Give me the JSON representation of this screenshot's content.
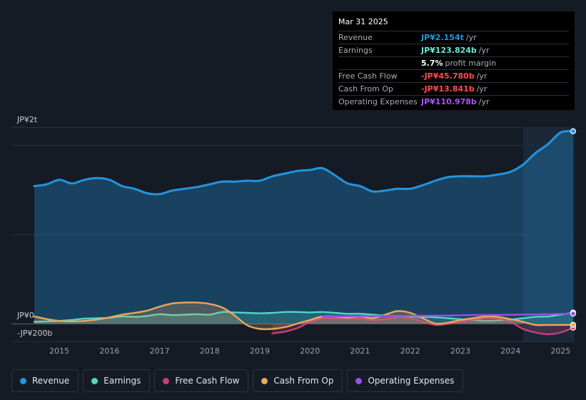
{
  "tooltip": {
    "date": "Mar 31 2025",
    "rows": [
      {
        "label": "Revenue",
        "value": "JP¥2.154t",
        "unit": "/yr",
        "color": "#2394df"
      },
      {
        "label": "Earnings",
        "value": "JP¥123.824b",
        "unit": "/yr",
        "color": "#6ee7d7"
      },
      {
        "label": "",
        "value": "5.7%",
        "unit": "profit margin",
        "color": "#ffffff"
      },
      {
        "label": "Free Cash Flow",
        "value": "-JP¥45.780b",
        "unit": "/yr",
        "color": "#ff4d4d"
      },
      {
        "label": "Cash From Op",
        "value": "-JP¥13.841b",
        "unit": "/yr",
        "color": "#ff4d4d"
      },
      {
        "label": "Operating Expenses",
        "value": "JP¥110.978b",
        "unit": "/yr",
        "color": "#a855f7"
      }
    ]
  },
  "legend": [
    {
      "label": "Revenue",
      "color": "#2394df"
    },
    {
      "label": "Earnings",
      "color": "#4fd6c6"
    },
    {
      "label": "Free Cash Flow",
      "color": "#c2407a"
    },
    {
      "label": "Cash From Op",
      "color": "#e9a85c"
    },
    {
      "label": "Operating Expenses",
      "color": "#9b4ee6"
    }
  ],
  "chart_data": {
    "type": "area",
    "title": "",
    "xlabel": "",
    "ylabel": "",
    "y_tick_labels": [
      "JP¥2t",
      "JP¥0",
      "-JP¥200b"
    ],
    "ylim": [
      -200,
      2200
    ],
    "xlim": [
      2014.5,
      2025.25
    ],
    "x_ticks": [
      2015,
      2016,
      2017,
      2018,
      2019,
      2020,
      2021,
      2022,
      2023,
      2024,
      2025
    ],
    "x_tick_labels": [
      "2015",
      "2016",
      "2017",
      "2018",
      "2019",
      "2020",
      "2021",
      "2022",
      "2023",
      "2024",
      "2025"
    ],
    "highlight_from": 2024.25,
    "series": [
      {
        "name": "Revenue",
        "unit": "JP¥ billions",
        "color": "#2394df",
        "fill": true,
        "points": [
          [
            2014.5,
            1540
          ],
          [
            2014.75,
            1560
          ],
          [
            2015.0,
            1610
          ],
          [
            2015.25,
            1570
          ],
          [
            2015.5,
            1610
          ],
          [
            2015.75,
            1630
          ],
          [
            2016.0,
            1610
          ],
          [
            2016.25,
            1540
          ],
          [
            2016.5,
            1510
          ],
          [
            2016.75,
            1460
          ],
          [
            2017.0,
            1450
          ],
          [
            2017.25,
            1490
          ],
          [
            2017.5,
            1510
          ],
          [
            2017.75,
            1530
          ],
          [
            2018.0,
            1560
          ],
          [
            2018.25,
            1590
          ],
          [
            2018.5,
            1590
          ],
          [
            2018.75,
            1600
          ],
          [
            2019.0,
            1600
          ],
          [
            2019.25,
            1650
          ],
          [
            2019.5,
            1680
          ],
          [
            2019.75,
            1710
          ],
          [
            2020.0,
            1720
          ],
          [
            2020.25,
            1740
          ],
          [
            2020.5,
            1660
          ],
          [
            2020.75,
            1570
          ],
          [
            2021.0,
            1540
          ],
          [
            2021.25,
            1480
          ],
          [
            2021.5,
            1490
          ],
          [
            2021.75,
            1510
          ],
          [
            2022.0,
            1510
          ],
          [
            2022.25,
            1550
          ],
          [
            2022.5,
            1600
          ],
          [
            2022.75,
            1640
          ],
          [
            2023.0,
            1650
          ],
          [
            2023.25,
            1650
          ],
          [
            2023.5,
            1650
          ],
          [
            2023.75,
            1670
          ],
          [
            2024.0,
            1700
          ],
          [
            2024.25,
            1780
          ],
          [
            2024.5,
            1910
          ],
          [
            2024.75,
            2010
          ],
          [
            2025.0,
            2140
          ],
          [
            2025.25,
            2154
          ]
        ]
      },
      {
        "name": "Earnings",
        "unit": "JP¥ billions",
        "color": "#4fd6c6",
        "fill": true,
        "points": [
          [
            2014.5,
            20
          ],
          [
            2014.75,
            25
          ],
          [
            2015.0,
            30
          ],
          [
            2015.25,
            40
          ],
          [
            2015.5,
            55
          ],
          [
            2015.75,
            60
          ],
          [
            2016.0,
            65
          ],
          [
            2016.25,
            80
          ],
          [
            2016.5,
            75
          ],
          [
            2016.75,
            85
          ],
          [
            2017.0,
            105
          ],
          [
            2017.25,
            95
          ],
          [
            2017.5,
            100
          ],
          [
            2017.75,
            105
          ],
          [
            2018.0,
            100
          ],
          [
            2018.25,
            130
          ],
          [
            2018.5,
            125
          ],
          [
            2018.75,
            120
          ],
          [
            2019.0,
            115
          ],
          [
            2019.25,
            120
          ],
          [
            2019.5,
            130
          ],
          [
            2019.75,
            130
          ],
          [
            2020.0,
            125
          ],
          [
            2020.25,
            130
          ],
          [
            2020.5,
            120
          ],
          [
            2020.75,
            110
          ],
          [
            2021.0,
            110
          ],
          [
            2021.25,
            100
          ],
          [
            2021.5,
            90
          ],
          [
            2021.75,
            85
          ],
          [
            2022.0,
            80
          ],
          [
            2022.25,
            75
          ],
          [
            2022.5,
            70
          ],
          [
            2022.75,
            60
          ],
          [
            2023.0,
            50
          ],
          [
            2023.25,
            40
          ],
          [
            2023.5,
            30
          ],
          [
            2023.75,
            35
          ],
          [
            2024.0,
            45
          ],
          [
            2024.25,
            60
          ],
          [
            2024.5,
            75
          ],
          [
            2024.75,
            80
          ],
          [
            2025.0,
            100
          ],
          [
            2025.25,
            124
          ]
        ]
      },
      {
        "name": "Free Cash Flow",
        "unit": "JP¥ billions",
        "color": "#c2407a",
        "fill": true,
        "points": [
          [
            2019.25,
            -110
          ],
          [
            2019.5,
            -90
          ],
          [
            2019.75,
            -50
          ],
          [
            2020.0,
            20
          ],
          [
            2020.25,
            60
          ],
          [
            2020.5,
            60
          ],
          [
            2020.75,
            55
          ],
          [
            2021.0,
            55
          ],
          [
            2021.25,
            40
          ],
          [
            2021.5,
            50
          ],
          [
            2021.75,
            70
          ],
          [
            2022.0,
            60
          ],
          [
            2022.25,
            20
          ],
          [
            2022.5,
            -15
          ],
          [
            2022.75,
            -5
          ],
          [
            2023.0,
            20
          ],
          [
            2023.25,
            45
          ],
          [
            2023.5,
            60
          ],
          [
            2023.75,
            60
          ],
          [
            2024.0,
            20
          ],
          [
            2024.25,
            -60
          ],
          [
            2024.5,
            -100
          ],
          [
            2024.75,
            -120
          ],
          [
            2025.0,
            -100
          ],
          [
            2025.25,
            -46
          ]
        ]
      },
      {
        "name": "Cash From Op",
        "unit": "JP¥ billions",
        "color": "#e9a85c",
        "fill": true,
        "points": [
          [
            2014.5,
            80
          ],
          [
            2014.75,
            50
          ],
          [
            2015.0,
            30
          ],
          [
            2015.25,
            25
          ],
          [
            2015.5,
            30
          ],
          [
            2015.75,
            45
          ],
          [
            2016.0,
            70
          ],
          [
            2016.25,
            100
          ],
          [
            2016.5,
            120
          ],
          [
            2016.75,
            145
          ],
          [
            2017.0,
            190
          ],
          [
            2017.25,
            225
          ],
          [
            2017.5,
            235
          ],
          [
            2017.75,
            235
          ],
          [
            2018.0,
            220
          ],
          [
            2018.25,
            180
          ],
          [
            2018.5,
            90
          ],
          [
            2018.75,
            -20
          ],
          [
            2019.0,
            -60
          ],
          [
            2019.25,
            -60
          ],
          [
            2019.5,
            -40
          ],
          [
            2019.75,
            0
          ],
          [
            2020.0,
            40
          ],
          [
            2020.25,
            80
          ],
          [
            2020.5,
            80
          ],
          [
            2020.75,
            70
          ],
          [
            2021.0,
            80
          ],
          [
            2021.25,
            60
          ],
          [
            2021.5,
            100
          ],
          [
            2021.75,
            140
          ],
          [
            2022.0,
            120
          ],
          [
            2022.25,
            60
          ],
          [
            2022.5,
            0
          ],
          [
            2022.75,
            10
          ],
          [
            2023.0,
            40
          ],
          [
            2023.25,
            60
          ],
          [
            2023.5,
            80
          ],
          [
            2023.75,
            75
          ],
          [
            2024.0,
            50
          ],
          [
            2024.25,
            20
          ],
          [
            2024.5,
            -15
          ],
          [
            2024.75,
            -15
          ],
          [
            2025.0,
            -15
          ],
          [
            2025.25,
            -14
          ]
        ]
      },
      {
        "name": "Operating Expenses",
        "unit": "JP¥ billions",
        "color": "#9b4ee6",
        "fill": false,
        "points": [
          [
            2020.25,
            80
          ],
          [
            2020.75,
            82
          ],
          [
            2021.25,
            85
          ],
          [
            2021.75,
            85
          ],
          [
            2022.25,
            88
          ],
          [
            2022.75,
            90
          ],
          [
            2023.25,
            95
          ],
          [
            2023.75,
            98
          ],
          [
            2024.25,
            100
          ],
          [
            2024.75,
            105
          ],
          [
            2025.25,
            111
          ]
        ]
      }
    ]
  }
}
